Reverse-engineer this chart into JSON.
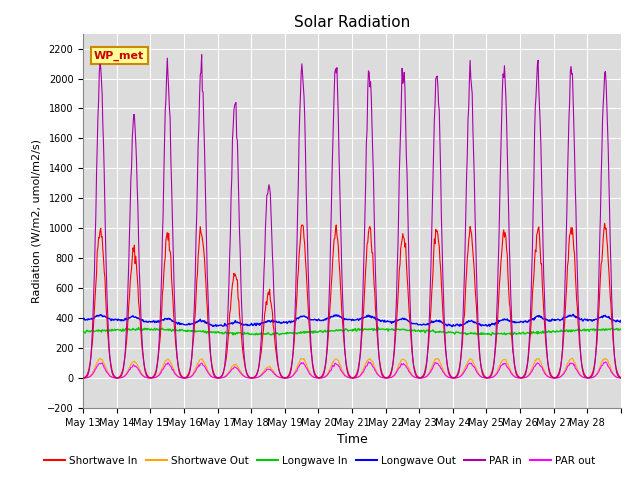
{
  "title": "Solar Radiation",
  "xlabel": "Time",
  "ylabel": "Radiation (W/m2, umol/m2/s)",
  "ylim": [
    -200,
    2300
  ],
  "yticks": [
    -200,
    0,
    200,
    400,
    600,
    800,
    1000,
    1200,
    1400,
    1600,
    1800,
    2000,
    2200
  ],
  "start_day": 13,
  "end_day": 28,
  "n_days": 16,
  "series": {
    "shortwave_in": {
      "color": "#ff0000",
      "label": "Shortwave In"
    },
    "shortwave_out": {
      "color": "#ffa500",
      "label": "Shortwave Out"
    },
    "longwave_in": {
      "color": "#00cc00",
      "label": "Longwave In"
    },
    "longwave_out": {
      "color": "#0000ff",
      "label": "Longwave Out"
    },
    "par_in": {
      "color": "#aa00aa",
      "label": "PAR in"
    },
    "par_out": {
      "color": "#ff00ff",
      "label": "PAR out"
    }
  },
  "background_color": "#dcdcdc",
  "fig_background": "#ffffff",
  "legend_box_color": "#ffff99",
  "legend_box_edge": "#cc8800",
  "annotation_text": "WP_met",
  "annotation_color": "#cc0000"
}
